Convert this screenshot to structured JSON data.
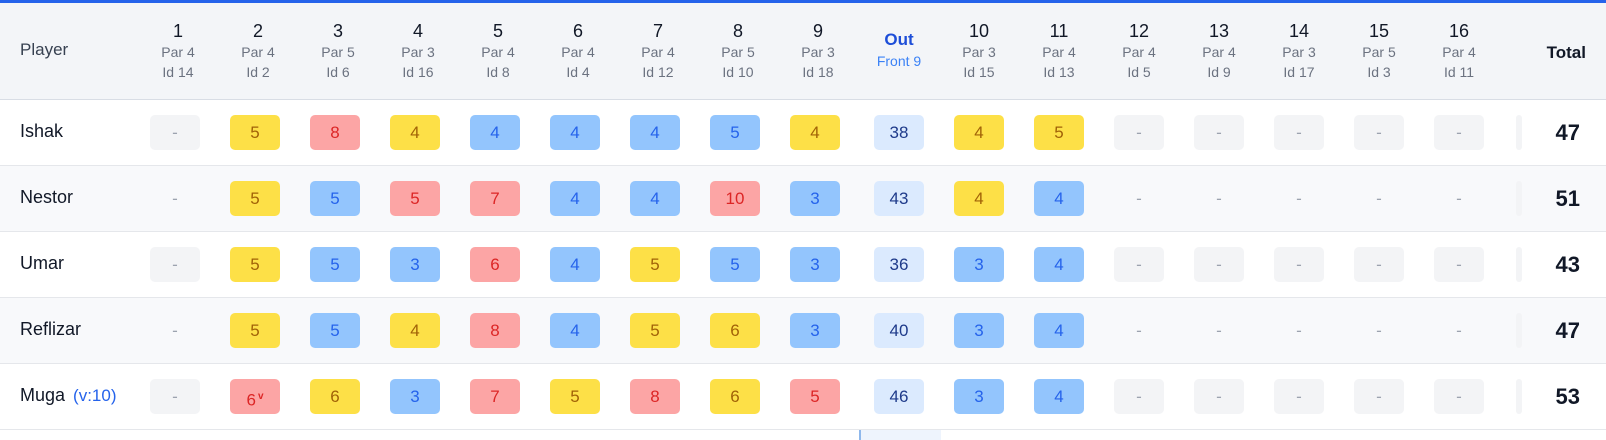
{
  "header": {
    "player_label": "Player",
    "total_label": "Total",
    "out": {
      "title": "Out",
      "subtitle": "Front 9"
    },
    "holes": [
      {
        "num": "1",
        "par": "Par 4",
        "id": "Id 14"
      },
      {
        "num": "2",
        "par": "Par 4",
        "id": "Id 2"
      },
      {
        "num": "3",
        "par": "Par 5",
        "id": "Id 6"
      },
      {
        "num": "4",
        "par": "Par 3",
        "id": "Id 16"
      },
      {
        "num": "5",
        "par": "Par 4",
        "id": "Id 8"
      },
      {
        "num": "6",
        "par": "Par 4",
        "id": "Id 4"
      },
      {
        "num": "7",
        "par": "Par 4",
        "id": "Id 12"
      },
      {
        "num": "8",
        "par": "Par 5",
        "id": "Id 10"
      },
      {
        "num": "9",
        "par": "Par 3",
        "id": "Id 18"
      },
      {
        "num": "10",
        "par": "Par 3",
        "id": "Id 15"
      },
      {
        "num": "11",
        "par": "Par 4",
        "id": "Id 13"
      },
      {
        "num": "12",
        "par": "Par 4",
        "id": "Id 5"
      },
      {
        "num": "13",
        "par": "Par 4",
        "id": "Id 9"
      },
      {
        "num": "14",
        "par": "Par 3",
        "id": "Id 17"
      },
      {
        "num": "15",
        "par": "Par 5",
        "id": "Id 3"
      },
      {
        "num": "16",
        "par": "Par 4",
        "id": "Id 11"
      }
    ]
  },
  "colors": {
    "over": "#fca5a5",
    "par": "#93c5fd",
    "bogey": "#fde047",
    "accent": "#2563eb"
  },
  "players": [
    {
      "name": "Ishak",
      "handicap": "",
      "front": [
        {
          "v": "-",
          "c": "empty"
        },
        {
          "v": "5",
          "c": "yellow"
        },
        {
          "v": "8",
          "c": "red"
        },
        {
          "v": "4",
          "c": "yellow"
        },
        {
          "v": "4",
          "c": "blue"
        },
        {
          "v": "4",
          "c": "blue"
        },
        {
          "v": "4",
          "c": "blue"
        },
        {
          "v": "5",
          "c": "blue"
        },
        {
          "v": "4",
          "c": "yellow"
        }
      ],
      "out": "38",
      "back": [
        {
          "v": "4",
          "c": "yellow"
        },
        {
          "v": "5",
          "c": "yellow"
        },
        {
          "v": "-",
          "c": "empty"
        },
        {
          "v": "-",
          "c": "empty"
        },
        {
          "v": "-",
          "c": "empty"
        },
        {
          "v": "-",
          "c": "empty"
        },
        {
          "v": "-",
          "c": "empty"
        }
      ],
      "total": "47"
    },
    {
      "name": "Nestor",
      "handicap": "",
      "front": [
        {
          "v": "-",
          "c": "dash"
        },
        {
          "v": "5",
          "c": "yellow"
        },
        {
          "v": "5",
          "c": "blue"
        },
        {
          "v": "5",
          "c": "red"
        },
        {
          "v": "7",
          "c": "red"
        },
        {
          "v": "4",
          "c": "blue"
        },
        {
          "v": "4",
          "c": "blue"
        },
        {
          "v": "10",
          "c": "red"
        },
        {
          "v": "3",
          "c": "blue"
        }
      ],
      "out": "43",
      "back": [
        {
          "v": "4",
          "c": "yellow"
        },
        {
          "v": "4",
          "c": "blue"
        },
        {
          "v": "-",
          "c": "dash"
        },
        {
          "v": "-",
          "c": "dash"
        },
        {
          "v": "-",
          "c": "dash"
        },
        {
          "v": "-",
          "c": "dash"
        },
        {
          "v": "-",
          "c": "dash"
        }
      ],
      "total": "51"
    },
    {
      "name": "Umar",
      "handicap": "",
      "front": [
        {
          "v": "-",
          "c": "empty"
        },
        {
          "v": "5",
          "c": "yellow"
        },
        {
          "v": "5",
          "c": "blue"
        },
        {
          "v": "3",
          "c": "blue"
        },
        {
          "v": "6",
          "c": "red"
        },
        {
          "v": "4",
          "c": "blue"
        },
        {
          "v": "5",
          "c": "yellow"
        },
        {
          "v": "5",
          "c": "blue"
        },
        {
          "v": "3",
          "c": "blue"
        }
      ],
      "out": "36",
      "back": [
        {
          "v": "3",
          "c": "blue"
        },
        {
          "v": "4",
          "c": "blue"
        },
        {
          "v": "-",
          "c": "empty"
        },
        {
          "v": "-",
          "c": "empty"
        },
        {
          "v": "-",
          "c": "empty"
        },
        {
          "v": "-",
          "c": "empty"
        },
        {
          "v": "-",
          "c": "empty"
        }
      ],
      "total": "43"
    },
    {
      "name": "Reflizar",
      "handicap": "",
      "front": [
        {
          "v": "-",
          "c": "dash"
        },
        {
          "v": "5",
          "c": "yellow"
        },
        {
          "v": "5",
          "c": "blue"
        },
        {
          "v": "4",
          "c": "yellow"
        },
        {
          "v": "8",
          "c": "red"
        },
        {
          "v": "4",
          "c": "blue"
        },
        {
          "v": "5",
          "c": "yellow"
        },
        {
          "v": "6",
          "c": "yellow"
        },
        {
          "v": "3",
          "c": "blue"
        }
      ],
      "out": "40",
      "back": [
        {
          "v": "3",
          "c": "blue"
        },
        {
          "v": "4",
          "c": "blue"
        },
        {
          "v": "-",
          "c": "dash"
        },
        {
          "v": "-",
          "c": "dash"
        },
        {
          "v": "-",
          "c": "dash"
        },
        {
          "v": "-",
          "c": "dash"
        },
        {
          "v": "-",
          "c": "dash"
        }
      ],
      "total": "47"
    },
    {
      "name": "Muga",
      "handicap": "(v:10)",
      "front": [
        {
          "v": "-",
          "c": "empty"
        },
        {
          "v": "6",
          "c": "red",
          "tag": "v"
        },
        {
          "v": "6",
          "c": "yellow"
        },
        {
          "v": "3",
          "c": "blue"
        },
        {
          "v": "7",
          "c": "red"
        },
        {
          "v": "5",
          "c": "yellow"
        },
        {
          "v": "8",
          "c": "red"
        },
        {
          "v": "6",
          "c": "yellow"
        },
        {
          "v": "5",
          "c": "red"
        }
      ],
      "out": "46",
      "back": [
        {
          "v": "3",
          "c": "blue"
        },
        {
          "v": "4",
          "c": "blue"
        },
        {
          "v": "-",
          "c": "empty"
        },
        {
          "v": "-",
          "c": "empty"
        },
        {
          "v": "-",
          "c": "empty"
        },
        {
          "v": "-",
          "c": "empty"
        },
        {
          "v": "-",
          "c": "empty"
        }
      ],
      "total": "53"
    }
  ]
}
